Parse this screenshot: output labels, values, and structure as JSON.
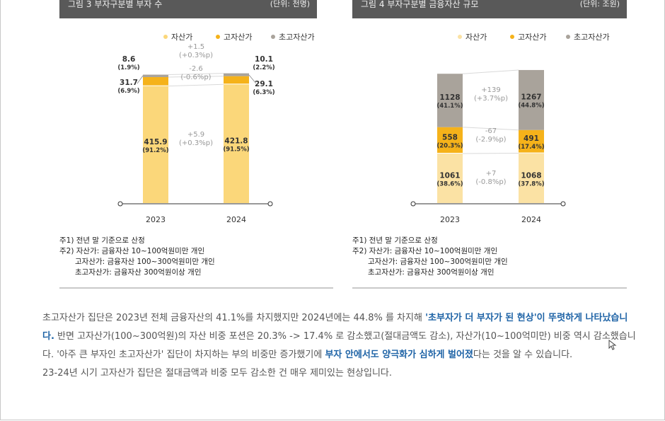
{
  "page": {
    "chart_titles": [
      "그림 3  부자구분별 부자 수",
      "그림 4  부자구분별 금융자산 규모"
    ],
    "chart_units": [
      "(단위: 천명)",
      "(단위: 조원)"
    ]
  },
  "chart_data": [
    {
      "type": "bar",
      "stacked": true,
      "title": "그림 3  부자구분별 부자 수",
      "unit": "(단위: 천명)",
      "categories": [
        "2023",
        "2024"
      ],
      "legend": [
        "자산가",
        "고자산가",
        "초고자산가"
      ],
      "colors": [
        "#fbd77a",
        "#f5b21a",
        "#a9a39b"
      ],
      "series": [
        {
          "name": "자산가",
          "values": [
            415.9,
            421.8
          ],
          "shares": [
            "(91.2%)",
            "(91.5%)"
          ]
        },
        {
          "name": "고자산가",
          "values": [
            31.7,
            29.1
          ],
          "shares": [
            "(6.9%)",
            "(6.3%)"
          ]
        },
        {
          "name": "초고자산가",
          "values": [
            8.6,
            10.1
          ],
          "shares": [
            "(1.9%)",
            "(2.2%)"
          ]
        }
      ],
      "changes": [
        {
          "series": "자산가",
          "value": "+5.9",
          "pp": "(+0.3%p)"
        },
        {
          "series": "고자산가",
          "value": "-2.6",
          "pp": "(-0.6%p)"
        },
        {
          "series": "초고자산가",
          "value": "+1.5",
          "pp": "(+0.3%p)"
        }
      ],
      "ylim": [
        0,
        470
      ]
    },
    {
      "type": "bar",
      "stacked": true,
      "title": "그림 4  부자구분별 금융자산 규모",
      "unit": "(단위: 조원)",
      "categories": [
        "2023",
        "2024"
      ],
      "legend": [
        "자산가",
        "고자산가",
        "초고자산가"
      ],
      "colors": [
        "#fbe2a4",
        "#f5b21a",
        "#a9a39b"
      ],
      "series": [
        {
          "name": "자산가",
          "values": [
            1061,
            1068
          ],
          "shares": [
            "(38.6%)",
            "(37.8%)"
          ]
        },
        {
          "name": "고자산가",
          "values": [
            558,
            491
          ],
          "shares": [
            "(20.3%)",
            "(17.4%)"
          ]
        },
        {
          "name": "초고자산가",
          "values": [
            1128,
            1267
          ],
          "shares": [
            "(41.1%)",
            "(44.8%)"
          ]
        }
      ],
      "changes": [
        {
          "series": "자산가",
          "value": "+7",
          "pp": "(-0.8%p)"
        },
        {
          "series": "고자산가",
          "value": "-67",
          "pp": "(-2.9%p)"
        },
        {
          "series": "초고자산가",
          "value": "+139",
          "pp": "(+3.7%p)"
        }
      ],
      "ylim": [
        0,
        2900
      ]
    }
  ],
  "notes": {
    "n1": "주1) 전년 말 기준으로 산정",
    "n2": "주2) 자산가: 금융자산 10~100억원미만 개인",
    "n3": "고자산가: 금융자산 100~300억원미만 개인",
    "n4": "초고자산가: 금융자산 300억원이상 개인"
  },
  "body": {
    "p1_a": "초고자산가 집단은 2023년 전체 금융자산의 41.1%를 차지했지만 2024년에는 44.8% 를 차지해 ",
    "p1_hl1": "'초부자가 더 부자가 된 현상'이 뚜렷하게 나타났습니다.",
    "p1_b": " 반면 고자산가(100~300억원)의 자산 비중 포션은 20.3% -> 17.4% 로 감소했고(절대금액도 감소), 자산가(10~100억미만) 비중 역시 감소했습니다. '아주 큰 부자인 초고자산가' 집단이 차지하는 부의 비중만 증가했기에 ",
    "p1_hl2": "부자 안에서도 양극화가 심하게 벌어졌",
    "p1_c": "다는 것을 알 수 있습니다.",
    "p2": "23-24년 시기 고자산가 집단은 절대금액과 비중 모두 감소한 건 매우 제미있는 현상입니다."
  }
}
